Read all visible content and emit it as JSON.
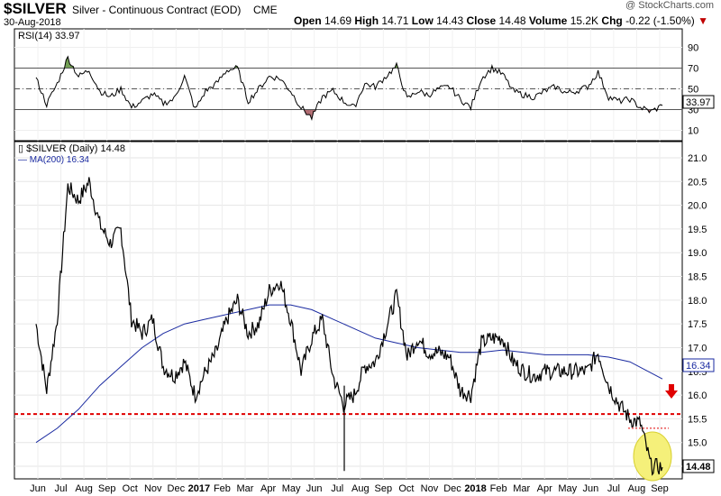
{
  "header": {
    "symbol": "$SILVER",
    "description": "Silver - Continuous Contract (EOD)",
    "exchange": "CME",
    "date": "30-Aug-2018",
    "open_label": "Open",
    "open": "14.69",
    "high_label": "High",
    "high": "14.71",
    "low_label": "Low",
    "low": "14.43",
    "close_label": "Close",
    "close": "14.48",
    "volume_label": "Volume",
    "volume": "15.2K",
    "chg_label": "Chg",
    "chg": "-0.22 (-1.50%)",
    "copyright": "@ StockCharts.com"
  },
  "rsi_panel": {
    "label": "RSI(14)",
    "value": "33.97",
    "ticks": [
      "90",
      "70",
      "50",
      "30",
      "10"
    ]
  },
  "price_panel": {
    "label": "$SILVER (Daily)",
    "last": "14.48",
    "ma_label": "MA(200)",
    "ma_value": "16.34",
    "last_tag": "14.48",
    "ma_tag": "16.34",
    "ticks": [
      "21.0",
      "20.5",
      "20.0",
      "19.5",
      "19.0",
      "18.5",
      "18.0",
      "17.5",
      "17.0",
      "16.5",
      "16.0",
      "15.5",
      "15.0",
      "14.5"
    ]
  },
  "x_axis": [
    "Jun",
    "Jul",
    "Aug",
    "Sep",
    "Oct",
    "Nov",
    "Dec",
    "2017",
    "Feb",
    "Mar",
    "Apr",
    "May",
    "Jun",
    "Jul",
    "Aug",
    "Sep",
    "Oct",
    "Nov",
    "Dec",
    "2018",
    "Feb",
    "Mar",
    "Apr",
    "May",
    "Jun",
    "Jul",
    "Aug",
    "Sep"
  ],
  "colors": {
    "price": "#000000",
    "ma": "#1a2aa0",
    "support": "#e00000",
    "rsi_overbought": "#6a9a4a",
    "rsi_oversold": "#b06a70",
    "highlight": "#f5f07a"
  },
  "chart_data": [
    {
      "type": "line",
      "title": "$SILVER (Daily)",
      "series": [
        {
          "name": "$SILVER (Daily)",
          "x": [
            "2016-05-25",
            "2016-06-08",
            "2016-06-22",
            "2016-07-06",
            "2016-07-20",
            "2016-08-03",
            "2016-08-17",
            "2016-08-31",
            "2016-09-14",
            "2016-09-28",
            "2016-10-12",
            "2016-10-26",
            "2016-11-09",
            "2016-11-23",
            "2016-12-07",
            "2016-12-21",
            "2017-01-04",
            "2017-01-18",
            "2017-02-01",
            "2017-02-15",
            "2017-03-01",
            "2017-03-15",
            "2017-03-29",
            "2017-04-12",
            "2017-04-26",
            "2017-05-10",
            "2017-05-24",
            "2017-06-07",
            "2017-06-21",
            "2017-07-05",
            "2017-07-19",
            "2017-08-02",
            "2017-08-16",
            "2017-08-30",
            "2017-09-13",
            "2017-09-27",
            "2017-10-11",
            "2017-10-25",
            "2017-11-08",
            "2017-11-22",
            "2017-12-06",
            "2017-12-20",
            "2018-01-03",
            "2018-01-17",
            "2018-01-31",
            "2018-02-14",
            "2018-02-28",
            "2018-03-14",
            "2018-03-28",
            "2018-04-11",
            "2018-04-25",
            "2018-05-09",
            "2018-05-23",
            "2018-06-06",
            "2018-06-20",
            "2018-07-04",
            "2018-07-18",
            "2018-08-01",
            "2018-08-15",
            "2018-08-30"
          ],
          "values": [
            17.5,
            16.1,
            17.6,
            20.4,
            20.1,
            20.5,
            19.6,
            19.2,
            19.5,
            17.6,
            17.3,
            17.6,
            16.6,
            16.4,
            16.7,
            16.0,
            16.5,
            16.9,
            17.6,
            18.0,
            17.3,
            17.5,
            18.2,
            18.4,
            17.6,
            16.5,
            17.2,
            17.6,
            16.4,
            15.8,
            16.0,
            16.6,
            16.7,
            17.4,
            18.1,
            16.8,
            17.2,
            16.9,
            16.9,
            16.8,
            16.1,
            16.0,
            17.1,
            17.2,
            17.2,
            16.7,
            16.5,
            16.4,
            16.5,
            16.5,
            16.5,
            16.5,
            16.5,
            16.9,
            16.2,
            15.8,
            15.5,
            15.4,
            14.5,
            14.48
          ],
          "color": "#000000"
        },
        {
          "name": "MA(200)",
          "x": [
            "2016-05-25",
            "2016-06-22",
            "2016-07-20",
            "2016-08-17",
            "2016-09-14",
            "2016-10-12",
            "2016-11-09",
            "2016-12-07",
            "2017-01-04",
            "2017-02-01",
            "2017-03-01",
            "2017-03-29",
            "2017-04-26",
            "2017-05-24",
            "2017-06-21",
            "2017-07-19",
            "2017-08-16",
            "2017-09-13",
            "2017-10-11",
            "2017-11-08",
            "2017-12-06",
            "2018-01-03",
            "2018-01-31",
            "2018-02-28",
            "2018-03-28",
            "2018-04-25",
            "2018-05-23",
            "2018-06-20",
            "2018-07-18",
            "2018-08-30"
          ],
          "values": [
            15.0,
            15.3,
            15.7,
            16.2,
            16.6,
            17.0,
            17.3,
            17.5,
            17.6,
            17.7,
            17.8,
            17.9,
            17.9,
            17.8,
            17.6,
            17.4,
            17.2,
            17.1,
            17.0,
            16.95,
            16.9,
            16.9,
            16.95,
            16.9,
            16.85,
            16.85,
            16.85,
            16.8,
            16.7,
            16.34
          ],
          "color": "#1a2aa0"
        }
      ],
      "ylim": [
        14.25,
        21.1
      ],
      "support_line": 15.6,
      "grid": true
    },
    {
      "type": "line",
      "title": "RSI(14)",
      "series": [
        {
          "name": "RSI(14)",
          "x": [
            "2016-05-25",
            "2016-06-08",
            "2016-06-22",
            "2016-07-06",
            "2016-07-20",
            "2016-08-03",
            "2016-08-17",
            "2016-08-31",
            "2016-09-14",
            "2016-09-28",
            "2016-10-12",
            "2016-10-26",
            "2016-11-09",
            "2016-11-23",
            "2016-12-07",
            "2016-12-21",
            "2017-01-04",
            "2017-01-18",
            "2017-02-01",
            "2017-02-15",
            "2017-03-01",
            "2017-03-15",
            "2017-03-29",
            "2017-04-12",
            "2017-04-26",
            "2017-05-10",
            "2017-05-24",
            "2017-06-07",
            "2017-06-21",
            "2017-07-05",
            "2017-07-19",
            "2017-08-02",
            "2017-08-16",
            "2017-08-30",
            "2017-09-13",
            "2017-09-27",
            "2017-10-11",
            "2017-10-25",
            "2017-11-08",
            "2017-11-22",
            "2017-12-06",
            "2017-12-20",
            "2018-01-03",
            "2018-01-17",
            "2018-01-31",
            "2018-02-14",
            "2018-02-28",
            "2018-03-14",
            "2018-03-28",
            "2018-04-11",
            "2018-04-25",
            "2018-05-09",
            "2018-05-23",
            "2018-06-06",
            "2018-06-20",
            "2018-07-04",
            "2018-07-18",
            "2018-08-01",
            "2018-08-15",
            "2018-08-30"
          ],
          "values": [
            60,
            35,
            55,
            80,
            62,
            68,
            48,
            42,
            50,
            32,
            38,
            45,
            36,
            40,
            62,
            30,
            48,
            55,
            68,
            70,
            38,
            50,
            62,
            60,
            48,
            32,
            22,
            42,
            48,
            38,
            32,
            55,
            52,
            62,
            72,
            40,
            48,
            44,
            50,
            52,
            40,
            32,
            60,
            70,
            64,
            48,
            44,
            42,
            48,
            52,
            46,
            48,
            52,
            66,
            42,
            38,
            40,
            32,
            28,
            34
          ],
          "color": "#000000"
        }
      ],
      "ylim": [
        0,
        100
      ],
      "reference_lines": [
        70,
        50,
        30
      ]
    }
  ]
}
